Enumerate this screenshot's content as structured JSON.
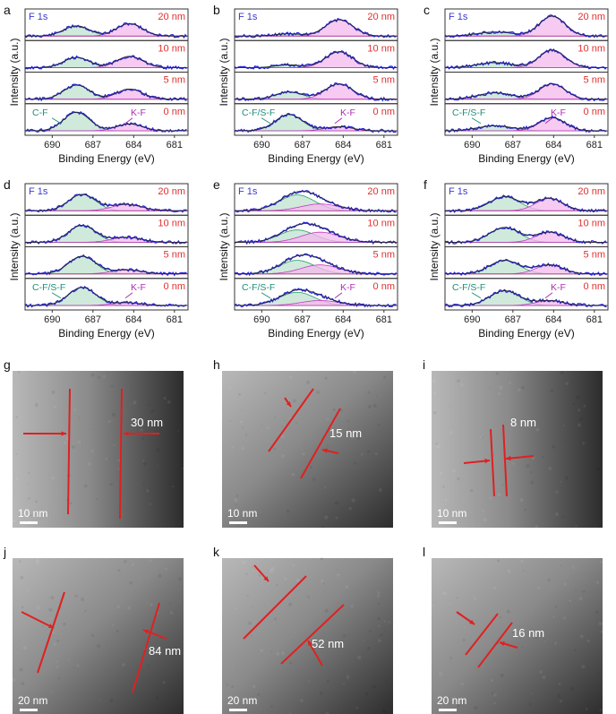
{
  "panel_labels": [
    "a",
    "b",
    "c",
    "d",
    "e",
    "f",
    "g",
    "h",
    "i",
    "j",
    "k",
    "l"
  ],
  "colors": {
    "data_line": "#2b2bd6",
    "fit_line": "#222222",
    "cf_fill": "#bfe3cf",
    "cf_stroke": "#2e9b6a",
    "kf_fill": "#f4b8ee",
    "kf_stroke": "#c23bc0",
    "baseline": "#e03030",
    "depth_label": "#e03030",
    "f1s_label": "#3a3ad0",
    "cf_label": "#1f8f7a",
    "kf_label": "#b02db0",
    "tem_marker": "#e02020"
  },
  "chart_data": [
    {
      "panel": "a",
      "type": "line",
      "title": "F 1s",
      "xlabel": "Binding Energy (eV)",
      "ylabel": "Intensity (a.u.)",
      "xlim": [
        692,
        680
      ],
      "xticks": [
        "690",
        "687",
        "684",
        "681"
      ],
      "depths": [
        "20 nm",
        "10 nm",
        "5 nm",
        "0 nm"
      ],
      "annotations": [
        "C-F",
        "K-F"
      ],
      "series": [
        {
          "name": "C-F",
          "center": 688.2,
          "width": 0.95,
          "heights": [
            0.45,
            0.45,
            0.62,
            0.82
          ]
        },
        {
          "name": "K-F",
          "center": 684.3,
          "width": 0.95,
          "heights": [
            0.55,
            0.5,
            0.45,
            0.3
          ]
        }
      ]
    },
    {
      "panel": "b",
      "type": "line",
      "title": "F 1s",
      "xlabel": "Binding Energy (eV)",
      "ylabel": "Intensity (a.u.)",
      "xlim": [
        692,
        680
      ],
      "xticks": [
        "690",
        "687",
        "684",
        "681"
      ],
      "depths": [
        "20 nm",
        "10 nm",
        "5 nm",
        "0 nm"
      ],
      "annotations": [
        "C-F/S-F",
        "K-F"
      ],
      "series": [
        {
          "name": "C-F/S-F",
          "center": 688.0,
          "width": 1.0,
          "heights": [
            0.1,
            0.12,
            0.32,
            0.72
          ]
        },
        {
          "name": "K-F",
          "center": 684.3,
          "width": 1.0,
          "heights": [
            0.72,
            0.7,
            0.68,
            0.18
          ]
        }
      ]
    },
    {
      "panel": "c",
      "type": "line",
      "title": "F 1s",
      "xlabel": "Binding Energy (eV)",
      "ylabel": "Intensity (a.u.)",
      "xlim": [
        692,
        680
      ],
      "xticks": [
        "690",
        "687",
        "684",
        "681"
      ],
      "depths": [
        "20 nm",
        "10 nm",
        "5 nm",
        "0 nm"
      ],
      "annotations": [
        "C-F/S-F",
        "K-F"
      ],
      "series": [
        {
          "name": "C-F/S-F",
          "center": 688.3,
          "width": 1.3,
          "heights": [
            0.18,
            0.22,
            0.28,
            0.22
          ]
        },
        {
          "name": "K-F",
          "center": 684.1,
          "width": 0.95,
          "heights": [
            0.88,
            0.78,
            0.68,
            0.58
          ]
        }
      ]
    },
    {
      "panel": "d",
      "type": "line",
      "title": "F 1s",
      "xlabel": "Binding Energy (eV)",
      "ylabel": "Intensity (a.u.)",
      "xlim": [
        692,
        680
      ],
      "xticks": [
        "690",
        "687",
        "684",
        "681"
      ],
      "depths": [
        "20 nm",
        "10 nm",
        "5 nm",
        "0 nm"
      ],
      "annotations": [
        "C-F/S-F",
        "K-F"
      ],
      "series": [
        {
          "name": "C-F/S-F",
          "center": 687.8,
          "width": 1.0,
          "heights": [
            0.72,
            0.75,
            0.78,
            0.8
          ]
        },
        {
          "name": "K-F",
          "center": 684.5,
          "width": 1.1,
          "heights": [
            0.28,
            0.22,
            0.18,
            0.12
          ]
        }
      ]
    },
    {
      "panel": "e",
      "type": "line",
      "title": "F 1s",
      "xlabel": "Binding Energy (eV)",
      "ylabel": "Intensity (a.u.)",
      "xlim": [
        692,
        680
      ],
      "xticks": [
        "690",
        "687",
        "684",
        "681"
      ],
      "depths": [
        "20 nm",
        "10 nm",
        "5 nm",
        "0 nm"
      ],
      "annotations": [
        "C-F/S-F",
        "K-F"
      ],
      "series": [
        {
          "name": "C-F/S-F",
          "center": 687.4,
          "width": 1.3,
          "heights": [
            0.7,
            0.55,
            0.6,
            0.58
          ]
        },
        {
          "name": "K-F",
          "center": 685.7,
          "width": 1.4,
          "heights": [
            0.3,
            0.45,
            0.4,
            0.22
          ]
        }
      ]
    },
    {
      "panel": "f",
      "type": "line",
      "title": "F 1s",
      "xlabel": "Binding Energy (eV)",
      "ylabel": "Intensity (a.u.)",
      "xlim": [
        692,
        680
      ],
      "xticks": [
        "690",
        "687",
        "684",
        "681"
      ],
      "depths": [
        "20 nm",
        "10 nm",
        "5 nm",
        "0 nm"
      ],
      "annotations": [
        "C-F/S-F",
        "K-F"
      ],
      "series": [
        {
          "name": "C-F/S-F",
          "center": 687.6,
          "width": 1.1,
          "heights": [
            0.62,
            0.66,
            0.6,
            0.65
          ]
        },
        {
          "name": "K-F",
          "center": 684.3,
          "width": 1.0,
          "heights": [
            0.55,
            0.45,
            0.4,
            0.22
          ]
        }
      ]
    }
  ],
  "tem_panels": [
    {
      "panel": "g",
      "measurement": "30 nm",
      "scale_bar": "10 nm"
    },
    {
      "panel": "h",
      "measurement": "15 nm",
      "scale_bar": "10 nm"
    },
    {
      "panel": "i",
      "measurement": "8 nm",
      "scale_bar": "10 nm"
    },
    {
      "panel": "j",
      "measurement": "84 nm",
      "scale_bar": "20 nm"
    },
    {
      "panel": "k",
      "measurement": "52 nm",
      "scale_bar": "20 nm"
    },
    {
      "panel": "l",
      "measurement": "16 nm",
      "scale_bar": "20 nm"
    }
  ]
}
